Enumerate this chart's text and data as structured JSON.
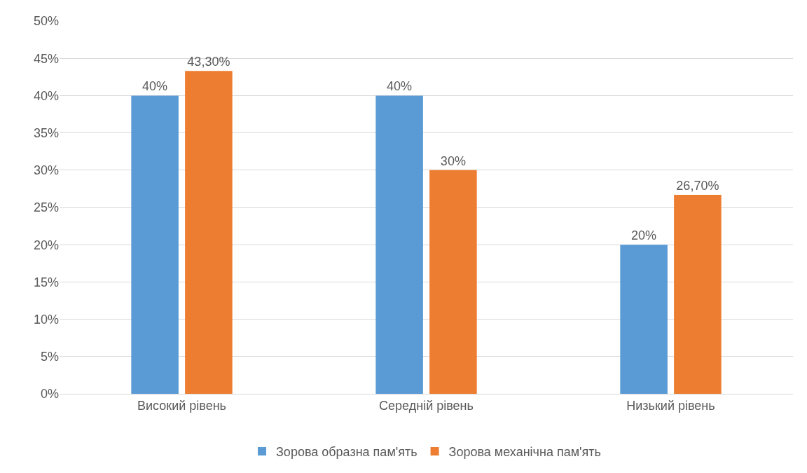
{
  "chart_data": {
    "type": "bar",
    "categories": [
      "Високий рівень",
      "Середній рівень",
      "Низький рівень"
    ],
    "series": [
      {
        "name": "Зорова образна пам'ять",
        "color": "#5b9bd5",
        "values": [
          40,
          40,
          20
        ],
        "value_labels": [
          "40%",
          "40%",
          "20%"
        ]
      },
      {
        "name": "Зорова механічна пам'ять",
        "color": "#ed7d31",
        "values": [
          43.3,
          30,
          26.7
        ],
        "value_labels": [
          "43,30%",
          "30%",
          "26,70%"
        ]
      }
    ],
    "ylim": [
      0,
      50
    ],
    "yticks": [
      {
        "value": 0,
        "label": "0%"
      },
      {
        "value": 5,
        "label": "5%"
      },
      {
        "value": 10,
        "label": "10%"
      },
      {
        "value": 15,
        "label": "15%"
      },
      {
        "value": 20,
        "label": "20%"
      },
      {
        "value": 25,
        "label": "25%"
      },
      {
        "value": 30,
        "label": "30%"
      },
      {
        "value": 35,
        "label": "35%"
      },
      {
        "value": 40,
        "label": "40%"
      },
      {
        "value": 45,
        "label": "45%"
      },
      {
        "value": 50,
        "label": "50%"
      }
    ],
    "grid": "y",
    "legend": "bottom"
  }
}
